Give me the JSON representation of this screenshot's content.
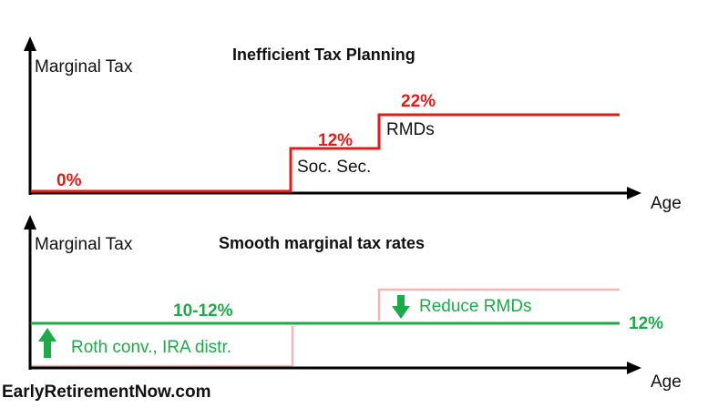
{
  "colors": {
    "axis": "#000000",
    "inefficient_line": "#e21b1b",
    "smooth_line": "#1faa4a",
    "faded_line": "#f2b8b8"
  },
  "top_panel": {
    "title": "Inefficient Tax Planning",
    "y_label": "Marginal Tax",
    "x_label": "Age",
    "steps": [
      {
        "rate": "0%",
        "label": ""
      },
      {
        "rate": "12%",
        "label": "Soc. Sec."
      },
      {
        "rate": "22%",
        "label": "RMDs"
      }
    ]
  },
  "bottom_panel": {
    "title": "Smooth marginal tax rates",
    "y_label": "Marginal Tax",
    "x_label": "Age",
    "early_rate": "10-12%",
    "late_rate": "12%",
    "up_annotation": "Roth conv., IRA distr.",
    "down_annotation": "Reduce RMDs",
    "up_icon": "up-arrow-icon",
    "down_icon": "down-arrow-icon"
  },
  "branding": "EarlyRetirementNow.com"
}
